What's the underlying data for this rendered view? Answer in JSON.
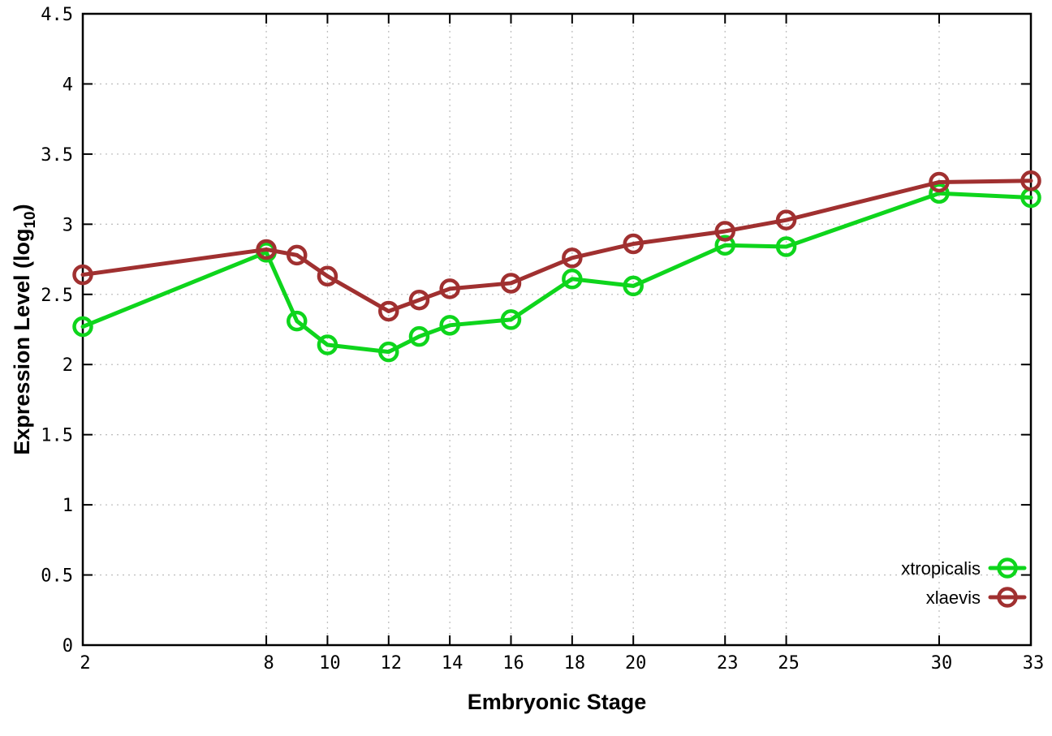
{
  "chart_data": {
    "type": "line",
    "title": "",
    "xlabel": "Embryonic Stage",
    "ylabel_prefix": "Expression Level (log",
    "ylabel_sub": "10",
    "ylabel_suffix": ")",
    "xlim": [
      2,
      33
    ],
    "ylim": [
      0,
      4.5
    ],
    "x_ticks": [
      2,
      8,
      10,
      12,
      14,
      16,
      18,
      20,
      23,
      25,
      30,
      33
    ],
    "y_tick_labels": [
      "0",
      "0.5",
      "1",
      "1.5",
      "2",
      "2.5",
      "3",
      "3.5",
      "4",
      "4.5"
    ],
    "grid": true,
    "legend_position": "bottom-right-inside",
    "x": [
      2,
      8,
      9,
      10,
      12,
      13,
      14,
      16,
      18,
      20,
      23,
      25,
      30,
      33
    ],
    "series": [
      {
        "name": "xtropicalis",
        "color": "#0ed51c",
        "values": [
          2.27,
          2.8,
          2.31,
          2.14,
          2.09,
          2.2,
          2.28,
          2.32,
          2.61,
          2.56,
          2.85,
          2.84,
          3.22,
          3.19
        ]
      },
      {
        "name": "xlaevis",
        "color": "#a03030",
        "values": [
          2.64,
          2.82,
          2.78,
          2.63,
          2.38,
          2.46,
          2.54,
          2.58,
          2.76,
          2.86,
          2.95,
          3.03,
          3.3,
          3.31
        ]
      }
    ],
    "marker": "open-circle",
    "grid_color": "#c0c0c0",
    "axis_color": "#000000"
  }
}
